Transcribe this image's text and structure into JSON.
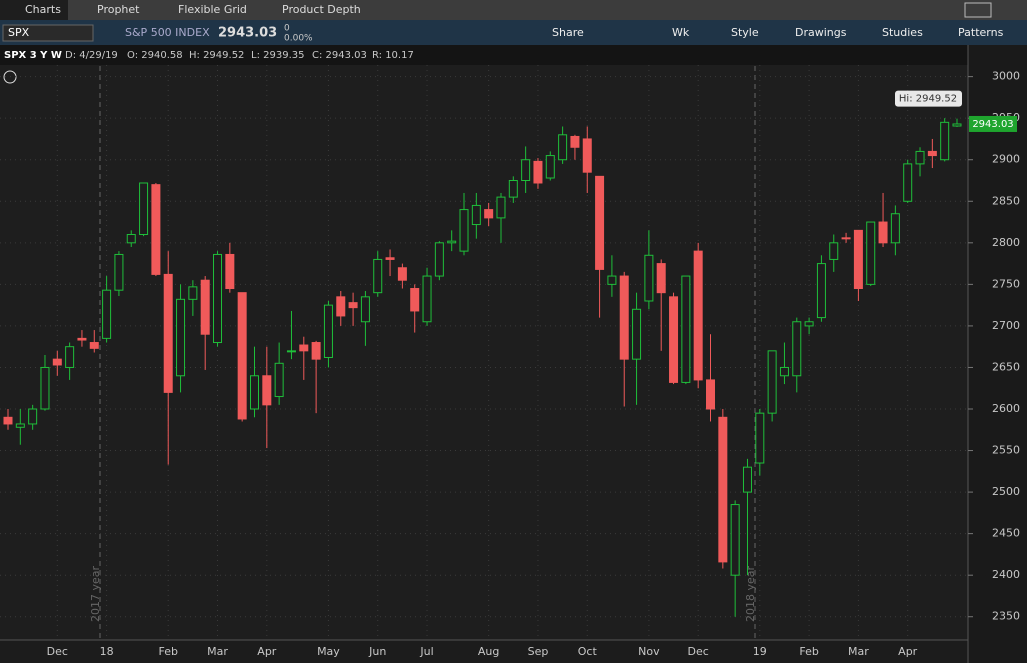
{
  "tabs": [
    "Charts",
    "Prophet",
    "Flexible Grid",
    "Product Depth"
  ],
  "symbol_bar": {
    "symbol": "SPX",
    "description": "S&P 500 INDEX",
    "last": "2943.03",
    "change": "0",
    "change_pct": "0.00%",
    "buttons": [
      "Share",
      "Wk",
      "Style",
      "Drawings",
      "Studies",
      "Patterns"
    ]
  },
  "info": {
    "study": "SPX 3 Y W",
    "date": "D: 4/29/19",
    "open": "O: 2940.58",
    "high": "H: 2949.52",
    "low": "L: 2939.35",
    "close": "C: 2943.03",
    "range": "R: 10.17"
  },
  "chart_data": {
    "type": "candlestick",
    "categories": [
      null,
      null,
      null,
      null,
      "Dec",
      null,
      null,
      null,
      "18",
      null,
      null,
      null,
      null,
      "Feb",
      null,
      null,
      null,
      "Mar",
      null,
      null,
      null,
      "Apr",
      null,
      null,
      null,
      null,
      "May",
      null,
      null,
      null,
      "Jun",
      null,
      null,
      null,
      "Jul",
      null,
      null,
      null,
      null,
      "Aug",
      null,
      null,
      null,
      "Sep",
      null,
      null,
      null,
      "Oct",
      null,
      null,
      null,
      null,
      "Nov",
      null,
      null,
      null,
      "Dec",
      null,
      null,
      null,
      null,
      "19",
      null,
      null,
      null,
      "Feb",
      null,
      null,
      null,
      "Mar",
      null,
      null,
      null,
      "Apr",
      null,
      null,
      null,
      null
    ],
    "open": [
      2590,
      2578,
      2582,
      2600,
      2660,
      2650,
      2685,
      2680,
      2685,
      2743,
      2800,
      2810,
      2870,
      2762,
      2640,
      2732,
      2755,
      2680,
      2786,
      2740,
      2600,
      2640,
      2615,
      2670,
      2677,
      2680,
      2662,
      2735,
      2728,
      2705,
      2740,
      2782,
      2770,
      2745,
      2705,
      2760,
      2800,
      2790,
      2822,
      2840,
      2830,
      2855,
      2875,
      2898,
      2878,
      2900,
      2928,
      2925,
      2880,
      2750,
      2760,
      2660,
      2730,
      2775,
      2735,
      2632,
      2790,
      2635,
      2590,
      2400,
      2500,
      2535,
      2595,
      2640,
      2640,
      2700,
      2710,
      2780,
      2806,
      2815,
      2750,
      2825,
      2800,
      2850,
      2895,
      2910,
      2900,
      2940.58
    ],
    "high": [
      2600,
      2600,
      2605,
      2665,
      2670,
      2680,
      2695,
      2695,
      2760,
      2790,
      2815,
      2872,
      2872,
      2790,
      2750,
      2755,
      2760,
      2790,
      2800,
      2740,
      2675,
      2675,
      2680,
      2718,
      2687,
      2682,
      2730,
      2742,
      2740,
      2742,
      2790,
      2792,
      2775,
      2750,
      2770,
      2802,
      2815,
      2860,
      2860,
      2848,
      2860,
      2880,
      2916,
      2902,
      2910,
      2940,
      2930,
      2940,
      2880,
      2785,
      2765,
      2740,
      2815,
      2780,
      2740,
      2760,
      2800,
      2690,
      2600,
      2490,
      2540,
      2600,
      2670,
      2680,
      2710,
      2710,
      2785,
      2810,
      2812,
      2815,
      2825,
      2860,
      2845,
      2900,
      2915,
      2925,
      2950,
      2949.52
    ],
    "low": [
      2575,
      2557,
      2575,
      2598,
      2640,
      2635,
      2675,
      2668,
      2680,
      2736,
      2795,
      2808,
      2760,
      2533,
      2620,
      2712,
      2647,
      2675,
      2740,
      2585,
      2590,
      2553,
      2605,
      2660,
      2635,
      2595,
      2650,
      2700,
      2700,
      2676,
      2735,
      2760,
      2745,
      2692,
      2700,
      2755,
      2790,
      2785,
      2805,
      2820,
      2800,
      2848,
      2860,
      2865,
      2875,
      2895,
      2900,
      2860,
      2710,
      2735,
      2603,
      2605,
      2720,
      2670,
      2630,
      2630,
      2625,
      2585,
      2408,
      2350,
      2400,
      2520,
      2585,
      2630,
      2620,
      2690,
      2705,
      2765,
      2800,
      2730,
      2748,
      2795,
      2785,
      2848,
      2880,
      2890,
      2898,
      2939.35
    ],
    "close": [
      2582,
      2582,
      2600,
      2650,
      2653,
      2675,
      2683,
      2673,
      2743,
      2786,
      2810,
      2872,
      2762,
      2620,
      2732,
      2747,
      2690,
      2786,
      2745,
      2588,
      2640,
      2605,
      2655,
      2670,
      2670,
      2660,
      2725,
      2712,
      2722,
      2735,
      2780,
      2780,
      2755,
      2718,
      2760,
      2800,
      2802,
      2840,
      2845,
      2830,
      2855,
      2875,
      2900,
      2872,
      2905,
      2930,
      2915,
      2885,
      2768,
      2760,
      2660,
      2720,
      2785,
      2740,
      2632,
      2760,
      2635,
      2600,
      2416,
      2485,
      2530,
      2595,
      2670,
      2650,
      2705,
      2705,
      2775,
      2800,
      2805,
      2745,
      2825,
      2800,
      2835,
      2895,
      2910,
      2905,
      2945,
      2943.03
    ],
    "up_color": "#1fbf3a",
    "down_color": "#f05a5a",
    "ylim": [
      2322,
      3014
    ],
    "yticks": [
      2350,
      2400,
      2450,
      2500,
      2550,
      2600,
      2650,
      2700,
      2750,
      2800,
      2850,
      2900,
      2950,
      3000
    ],
    "grid": true,
    "annotations": [
      "2017 year",
      "2018 year",
      "Hi: 2949.52"
    ],
    "price_label": {
      "value": 2943.03,
      "label": "2943.03"
    }
  }
}
